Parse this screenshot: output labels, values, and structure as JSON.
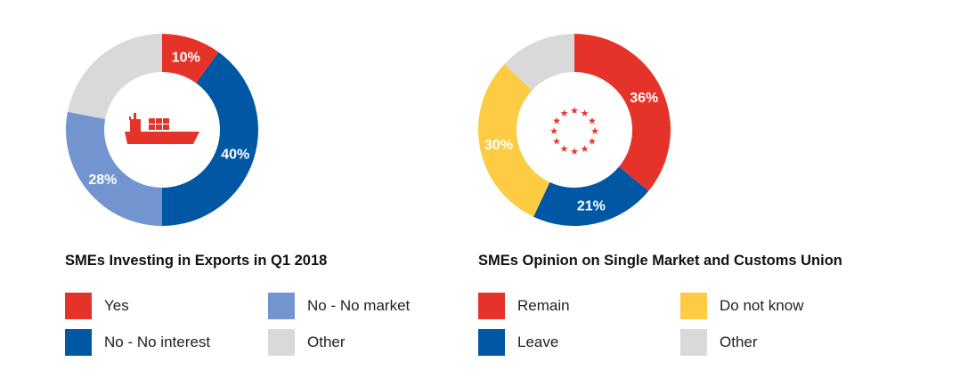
{
  "chart_data": [
    {
      "type": "pie",
      "donut": true,
      "title": "SMEs Investing in Exports in Q1 2018",
      "center_icon": "cargo-ship-icon",
      "categories": [
        "Yes",
        "No - No interest",
        "No - No market",
        "Other"
      ],
      "values": [
        10,
        40,
        28,
        22
      ],
      "data_labels": [
        "10%",
        "40%",
        "28%",
        ""
      ],
      "colors": [
        "#e5332a",
        "#0058a4",
        "#7395cf",
        "#d9d9d9"
      ],
      "legend": [
        "Yes",
        "No - No market",
        "No - No interest",
        "Other"
      ],
      "legend_colors": [
        "#e5332a",
        "#7395cf",
        "#0058a4",
        "#d9d9d9"
      ]
    },
    {
      "type": "pie",
      "donut": true,
      "title": "SMEs Opinion on Single Market and Customs Union",
      "center_icon": "eu-stars-icon",
      "categories": [
        "Remain",
        "Leave",
        "Do not know",
        "Other"
      ],
      "values": [
        36,
        21,
        30,
        13
      ],
      "data_labels": [
        "36%",
        "21%",
        "30%",
        ""
      ],
      "colors": [
        "#e5332a",
        "#0058a4",
        "#fecc44",
        "#d9d9d9"
      ],
      "legend": [
        "Remain",
        "Do not know",
        "Leave",
        "Other"
      ],
      "legend_colors": [
        "#e5332a",
        "#fecc44",
        "#0058a4",
        "#d9d9d9"
      ]
    }
  ]
}
